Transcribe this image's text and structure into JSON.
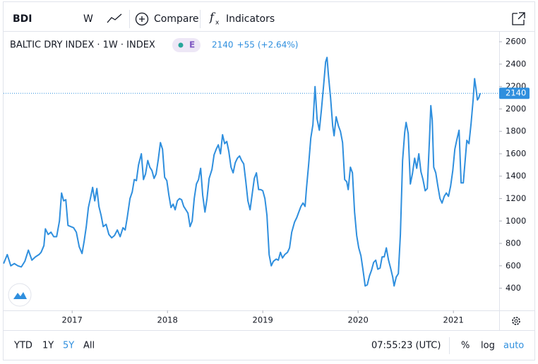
{
  "toolbar": {
    "symbol": "BDI",
    "interval": "W",
    "compare": "Compare",
    "indicators": "Indicators"
  },
  "chart_data": {
    "type": "line",
    "title": "BALTIC DRY INDEX · 1W · INDEX",
    "badge": "E",
    "last": 2140,
    "change": "+55",
    "change_percent": "(+2.64%)",
    "color": "#2f8fde",
    "x": [
      2016.281,
      2016.319,
      2016.356,
      2016.393,
      2016.43,
      2016.467,
      2016.504,
      2016.541,
      2016.578,
      2016.615,
      2016.652,
      2016.674,
      2016.704,
      2016.719,
      2016.748,
      2016.778,
      2016.807,
      2016.837,
      2016.867,
      2016.889,
      2016.911,
      2016.933,
      2016.956,
      2016.985,
      2017.015,
      2017.044,
      2017.074,
      2017.104,
      2017.126,
      2017.148,
      2017.17,
      2017.193,
      2017.215,
      2017.237,
      2017.259,
      2017.281,
      2017.304,
      2017.326,
      2017.356,
      2017.385,
      2017.415,
      2017.444,
      2017.474,
      2017.504,
      2017.533,
      2017.556,
      2017.578,
      2017.607,
      2017.63,
      2017.652,
      2017.674,
      2017.696,
      2017.726,
      2017.748,
      2017.77,
      2017.793,
      2017.815,
      2017.837,
      2017.859,
      2017.881,
      2017.904,
      2017.926,
      2017.948,
      2017.97,
      2017.993,
      2018.015,
      2018.037,
      2018.059,
      2018.081,
      2018.104,
      2018.126,
      2018.148,
      2018.17,
      2018.193,
      2018.215,
      2018.237,
      2018.259,
      2018.281,
      2018.304,
      2018.326,
      2018.348,
      2018.37,
      2018.393,
      2018.415,
      2018.437,
      2018.467,
      2018.489,
      2018.511,
      2018.533,
      2018.556,
      2018.578,
      2018.6,
      2018.622,
      2018.644,
      2018.667,
      2018.689,
      2018.711,
      2018.733,
      2018.756,
      2018.778,
      2018.8,
      2018.822,
      2018.844,
      2018.867,
      2018.889,
      2018.911,
      2018.933,
      2018.956,
      2018.978,
      2019.0,
      2019.022,
      2019.044,
      2019.067,
      2019.089,
      2019.111,
      2019.141,
      2019.163,
      2019.185,
      2019.207,
      2019.23,
      2019.259,
      2019.281,
      2019.304,
      2019.333,
      2019.356,
      2019.378,
      2019.4,
      2019.422,
      2019.444,
      2019.459,
      2019.481,
      2019.504,
      2019.526,
      2019.548,
      2019.57,
      2019.593,
      2019.615,
      2019.637,
      2019.659,
      2019.674,
      2019.689,
      2019.711,
      2019.733,
      2019.748,
      2019.77,
      2019.793,
      2019.815,
      2019.837,
      2019.859,
      2019.881,
      2019.896,
      2019.919,
      2019.941,
      2019.963,
      2019.985,
      2020.007,
      2020.03,
      2020.052,
      2020.074,
      2020.096,
      2020.119,
      2020.141,
      2020.163,
      2020.185,
      2020.207,
      2020.23,
      2020.252,
      2020.274,
      2020.296,
      2020.319,
      2020.341,
      2020.363,
      2020.378,
      2020.4,
      2020.422,
      2020.444,
      2020.467,
      2020.489,
      2020.504,
      2020.526,
      2020.548,
      2020.57,
      2020.593,
      2020.615,
      2020.637,
      2020.659,
      2020.681,
      2020.704,
      2020.726,
      2020.748,
      2020.763,
      2020.778,
      2020.793,
      2020.815,
      2020.837,
      2020.859,
      2020.881,
      2020.904,
      2020.926,
      2020.948,
      2020.97,
      2020.993,
      2021.015,
      2021.037,
      2021.059,
      2021.081,
      2021.104,
      2021.119,
      2021.141,
      2021.163,
      2021.185,
      2021.207,
      2021.222,
      2021.237,
      2021.252,
      2021.267,
      2021.281
    ],
    "values": [
      620,
      700,
      600,
      620,
      600,
      590,
      640,
      740,
      650,
      680,
      700,
      720,
      780,
      930,
      880,
      900,
      860,
      860,
      1000,
      1250,
      1180,
      1190,
      960,
      950,
      940,
      900,
      770,
      710,
      820,
      950,
      1120,
      1210,
      1300,
      1180,
      1290,
      1130,
      1050,
      950,
      970,
      880,
      850,
      870,
      920,
      860,
      940,
      920,
      1030,
      1200,
      1260,
      1370,
      1360,
      1500,
      1600,
      1370,
      1420,
      1540,
      1480,
      1450,
      1380,
      1420,
      1550,
      1700,
      1640,
      1390,
      1360,
      1230,
      1120,
      1150,
      1100,
      1180,
      1200,
      1190,
      1130,
      1100,
      1070,
      950,
      1000,
      1200,
      1330,
      1370,
      1470,
      1230,
      1080,
      1200,
      1380,
      1460,
      1590,
      1640,
      1680,
      1600,
      1770,
      1690,
      1710,
      1620,
      1480,
      1430,
      1520,
      1560,
      1580,
      1540,
      1510,
      1350,
      1180,
      1100,
      1240,
      1380,
      1430,
      1280,
      1280,
      1270,
      1200,
      1050,
      700,
      600,
      640,
      660,
      650,
      720,
      670,
      700,
      720,
      760,
      900,
      990,
      1030,
      1080,
      1130,
      1160,
      1130,
      1300,
      1500,
      1740,
      1860,
      2200,
      1910,
      1810,
      1990,
      2200,
      2420,
      2460,
      2300,
      2100,
      1850,
      1760,
      1930,
      1850,
      1800,
      1700,
      1370,
      1350,
      1280,
      1480,
      1430,
      1080,
      870,
      760,
      690,
      560,
      420,
      430,
      510,
      560,
      630,
      650,
      570,
      580,
      680,
      680,
      760,
      650,
      580,
      500,
      420,
      500,
      530,
      880,
      1540,
      1790,
      1880,
      1780,
      1330,
      1420,
      1560,
      1470,
      1600,
      1440,
      1370,
      1270,
      1290,
      1720,
      2030,
      1900,
      1480,
      1430,
      1310,
      1200,
      1160,
      1220,
      1250,
      1220,
      1310,
      1450,
      1640,
      1730,
      1810,
      1340,
      1340,
      1500,
      1720,
      1690,
      1870,
      2080,
      2270,
      2180,
      2080,
      2100,
      2140
    ],
    "xlim": [
      2016.28,
      2021.48
    ],
    "xticks": [
      2017,
      2018,
      2019,
      2020,
      2021
    ],
    "ylim": [
      202,
      2689
    ],
    "yticks": [
      2600,
      2400,
      2200,
      2000,
      1800,
      1600,
      1400,
      1200,
      1000,
      800,
      600,
      400
    ]
  },
  "bottom_bar": {
    "ranges": [
      "YTD",
      "1Y",
      "5Y",
      "All"
    ],
    "selected_range_index": 2,
    "time": "07:55:23 (UTC)",
    "percent": "%",
    "log": "log",
    "auto": "auto"
  }
}
